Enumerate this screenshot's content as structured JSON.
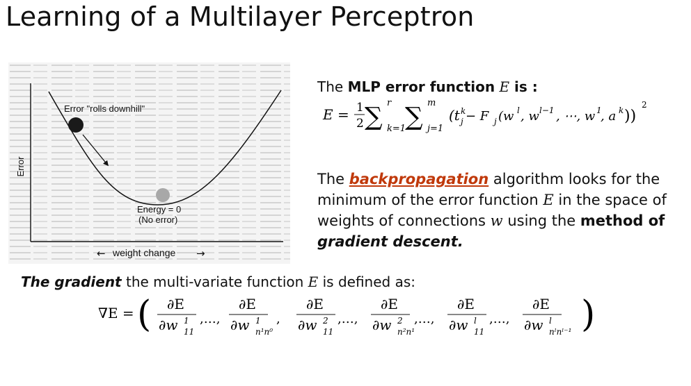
{
  "slide": {
    "title": "Learning of a Multilayer Perceptron"
  },
  "figure": {
    "y_axis_label": "Error",
    "x_axis_label": "weight change",
    "left_arrow": "←",
    "right_arrow": "→",
    "ball_annotation": "Error \"rolls downhill\"",
    "minimum_annotation_line1": "Energy = 0",
    "minimum_annotation_line2": "(No error)",
    "colors": {
      "ball_dark": "#1a1a1a",
      "ball_light": "#a8a8a8",
      "background_text": "#c9c9c9"
    }
  },
  "mlp_error": {
    "prefix": "The ",
    "bold": "MLP error function",
    "symbol": "E",
    "suffix": " is :",
    "eq_lhs": "E =",
    "eq_frac_num": "1",
    "eq_frac_den": "2",
    "sum_upper_1": "r",
    "sum_lower_1": "k=1",
    "sum_upper_2": "m",
    "sum_lower_2": "j=1",
    "eq_body": "(t",
    "eq_t_sup": "k",
    "eq_t_sub": "j",
    "eq_minus": " − F",
    "eq_F_sub": "j",
    "eq_args": "(w",
    "eq_args_rest": ", w",
    "eq_dots": ", ⋯, w",
    "eq_a": ", a",
    "eq_close": "))",
    "eq_sq": "2",
    "sup_l": "l",
    "sup_l1": "l−1",
    "sup_1": "1",
    "sup_k": "k"
  },
  "backprop": {
    "t1": "The ",
    "link": "backpropagation",
    "t2": " algorithm looks for the minimum of the error function ",
    "E": "E",
    "t3": " in the space of weights of connections ",
    "w": "w",
    "t4": " using the ",
    "bold": "method of",
    "bolditalic": "gradient descent."
  },
  "gradient": {
    "lead": "The gradient",
    "rest": " the multi-variate function ",
    "E": "E",
    "end": " is defined as:",
    "lhs": "∇E =",
    "numerator": "∂E",
    "dots": "…",
    "denominators": [
      {
        "base": "∂w",
        "sup": "1",
        "sub": "11"
      },
      {
        "base": "∂w",
        "sup": "1",
        "sub": "n¹n⁰"
      },
      {
        "base": "∂w",
        "sup": "2",
        "sub": "11"
      },
      {
        "base": "∂w",
        "sup": "2",
        "sub": "n²n¹"
      },
      {
        "base": "∂w",
        "sup": "l",
        "sub": "11"
      },
      {
        "base": "∂w",
        "sup": "l",
        "sub": "nˡnˡ⁻¹"
      }
    ]
  }
}
